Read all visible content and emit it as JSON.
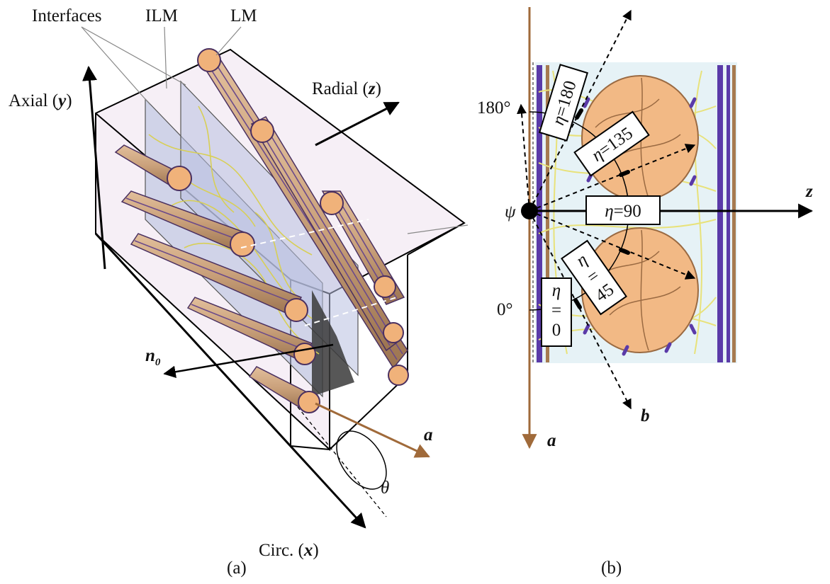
{
  "panel_a": {
    "caption": "(a)",
    "labels": {
      "interfaces": "Interfaces",
      "ilm": "ILM",
      "lm": "LM",
      "axial": "Axial (",
      "axial_var": "y",
      "radial": "Radial (",
      "radial_var": "z",
      "circ": "Circ. (",
      "circ_var": "x",
      "close": ")",
      "n0": "n",
      "n0_sub": "0",
      "a": "a",
      "theta": "θ"
    }
  },
  "panel_b": {
    "caption": "(b)",
    "labels": {
      "deg180": "180°",
      "deg0": "0°",
      "psi": "ψ",
      "z": "z",
      "a": "a",
      "b": "b",
      "eta": "η",
      "eq": "=",
      "v180": "180",
      "v135": "135",
      "v90": "90",
      "v45": "45",
      "v0": "0"
    }
  },
  "colors": {
    "fiber_body": "#c9a07a",
    "fiber_stripe": "#6b4a8a",
    "fiber_end": "#f0b27a",
    "arrow_a": "#a06a3a",
    "box_fill": "#f3e9f3",
    "plane_fill": "#b8bfe0",
    "collagen": "#e8e27a",
    "elastin": "#5a3aa8"
  }
}
